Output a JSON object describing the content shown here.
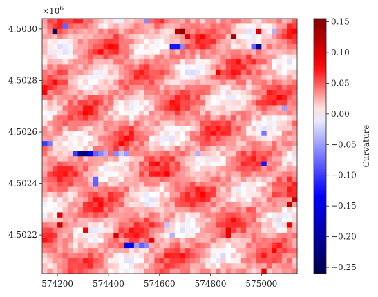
{
  "chart_data": {
    "type": "heatmap",
    "title": "",
    "xlabel": "",
    "ylabel": "",
    "y_offset_label": "×10^6",
    "x_tick_labels": [
      "574200",
      "574400",
      "574600",
      "574800",
      "575000"
    ],
    "x_ticks": [
      574200,
      574400,
      574600,
      574800,
      575000
    ],
    "xlim": [
      574140,
      575140
    ],
    "y_tick_labels": [
      "4.5022",
      "4.5024",
      "4.5026",
      "4.5028",
      "4.5030"
    ],
    "y_ticks": [
      4.5022,
      4.5024,
      4.5026,
      4.5028,
      4.503
    ],
    "ylim": [
      4.50205,
      4.50304
    ],
    "grid": {
      "cols": 50,
      "rows": 50
    },
    "colormap": "seismic",
    "colorbar": {
      "label": "Curvature",
      "vmin": -0.26,
      "vmax": 0.155,
      "ticks": [
        0.15,
        0.1,
        0.05,
        0.0,
        -0.05,
        -0.1,
        -0.15,
        -0.2,
        -0.25
      ],
      "tick_labels": [
        "0.15",
        "0.10",
        "0.05",
        "0.00",
        "−0.05",
        "−0.10",
        "−0.15",
        "−0.20",
        "−0.25"
      ]
    },
    "typical_value_range": [
      -0.02,
      0.08
    ],
    "notable_cells": [
      {
        "col": 2,
        "row": 2,
        "value": -0.25
      },
      {
        "col": 4,
        "row": 1,
        "value": -0.08
      },
      {
        "col": 20,
        "row": 0,
        "value": -0.06
      },
      {
        "col": 25,
        "row": 5,
        "value": -0.12
      },
      {
        "col": 26,
        "row": 5,
        "value": -0.12
      },
      {
        "col": 27,
        "row": 5,
        "value": -0.06
      },
      {
        "col": 26,
        "row": 2,
        "value": 0.12
      },
      {
        "col": 27,
        "row": 2,
        "value": 0.15
      },
      {
        "col": 28,
        "row": 3,
        "value": 0.1
      },
      {
        "col": 37,
        "row": 3,
        "value": 0.13
      },
      {
        "col": 41,
        "row": 5,
        "value": -0.08
      },
      {
        "col": 42,
        "row": 5,
        "value": -0.2
      },
      {
        "col": 42,
        "row": 2,
        "value": 0.1
      },
      {
        "col": 45,
        "row": 2,
        "value": -0.04
      },
      {
        "col": 47,
        "row": 17,
        "value": -0.05
      },
      {
        "col": 43,
        "row": 22,
        "value": -0.07
      },
      {
        "col": 43,
        "row": 28,
        "value": -0.12
      },
      {
        "col": 0,
        "row": 24,
        "value": -0.1
      },
      {
        "col": 1,
        "row": 24,
        "value": -0.07
      },
      {
        "col": 6,
        "row": 26,
        "value": -0.1
      },
      {
        "col": 7,
        "row": 26,
        "value": -0.22
      },
      {
        "col": 8,
        "row": 26,
        "value": -0.22
      },
      {
        "col": 9,
        "row": 26,
        "value": -0.15
      },
      {
        "col": 10,
        "row": 26,
        "value": -0.08
      },
      {
        "col": 11,
        "row": 26,
        "value": -0.06
      },
      {
        "col": 12,
        "row": 26,
        "value": -0.04
      },
      {
        "col": 14,
        "row": 26,
        "value": -0.06
      },
      {
        "col": 15,
        "row": 26,
        "value": -0.03
      },
      {
        "col": 16,
        "row": 26,
        "value": -0.05
      },
      {
        "col": 10,
        "row": 31,
        "value": -0.08
      },
      {
        "col": 10,
        "row": 32,
        "value": -0.08
      },
      {
        "col": 30,
        "row": 26,
        "value": -0.04
      },
      {
        "col": 16,
        "row": 44,
        "value": -0.15
      },
      {
        "col": 17,
        "row": 44,
        "value": -0.13
      },
      {
        "col": 18,
        "row": 44,
        "value": -0.05
      },
      {
        "col": 19,
        "row": 44,
        "value": -0.08
      },
      {
        "col": 20,
        "row": 44,
        "value": -0.06
      },
      {
        "col": 25,
        "row": 42,
        "value": -0.04
      },
      {
        "col": 24,
        "row": 40,
        "value": -0.03
      },
      {
        "col": 3,
        "row": 38,
        "value": 0.1
      },
      {
        "col": 3,
        "row": 40,
        "value": 0.11
      },
      {
        "col": 14,
        "row": 42,
        "value": 0.1
      },
      {
        "col": 21,
        "row": 43,
        "value": 0.09
      },
      {
        "col": 36,
        "row": 42,
        "value": 0.09
      },
      {
        "col": 48,
        "row": 36,
        "value": 0.12
      },
      {
        "col": 49,
        "row": 35,
        "value": 0.11
      },
      {
        "col": 48,
        "row": 40,
        "value": 0.09
      },
      {
        "col": 8,
        "row": 41,
        "value": 0.09
      },
      {
        "col": 34,
        "row": 10,
        "value": 0.09
      },
      {
        "col": 36,
        "row": 41,
        "value": 0.09
      },
      {
        "col": 43,
        "row": 49,
        "value": 0.09
      },
      {
        "col": 0,
        "row": 14,
        "value": 0.08
      },
      {
        "col": 24,
        "row": 30,
        "value": 0.08
      }
    ]
  }
}
